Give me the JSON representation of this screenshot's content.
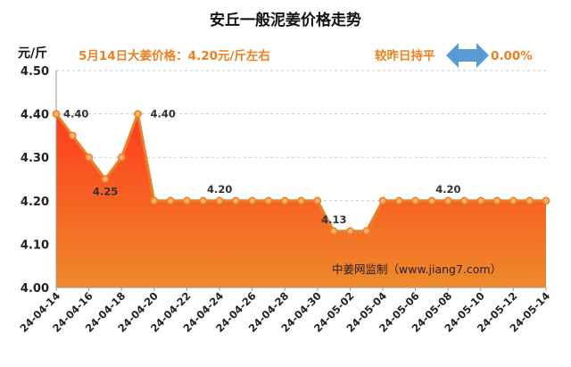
{
  "chart_data": {
    "type": "area",
    "title": "安丘一般泥姜价格走势",
    "ylabel": "元/斤",
    "ylim": [
      4.0,
      4.5
    ],
    "yticks": [
      "4.00",
      "4.10",
      "4.20",
      "4.30",
      "4.40",
      "4.50"
    ],
    "yticks_values": [
      4.0,
      4.1,
      4.2,
      4.3,
      4.4,
      4.5
    ],
    "x_tick_labels": [
      "24-04-14",
      "24-04-16",
      "24-04-18",
      "24-04-20",
      "24-04-22",
      "24-04-24",
      "24-04-26",
      "24-04-28",
      "24-04-30",
      "24-05-02",
      "24-05-04",
      "24-05-06",
      "24-05-08",
      "24-05-10",
      "24-05-12",
      "24-05-14"
    ],
    "values": [
      4.4,
      4.35,
      4.3,
      4.25,
      4.3,
      4.4,
      4.2,
      4.2,
      4.2,
      4.2,
      4.2,
      4.2,
      4.2,
      4.2,
      4.2,
      4.2,
      4.2,
      4.13,
      4.13,
      4.13,
      4.2,
      4.2,
      4.2,
      4.2,
      4.2,
      4.2,
      4.2,
      4.2,
      4.2,
      4.2,
      4.2
    ],
    "point_labels": [
      {
        "index": 0,
        "text": "4.40"
      },
      {
        "index": 3,
        "text": "4.25"
      },
      {
        "index": 5,
        "text": "4.40"
      },
      {
        "index": 10,
        "text": "4.20"
      },
      {
        "index": 17,
        "text": "4.13"
      },
      {
        "index": 24,
        "text": "4.20"
      }
    ],
    "grid": "horizontal dashed",
    "colors": {
      "line": "#e8812a",
      "fill_top": "#ff3b1e",
      "fill_bottom": "#ee8a2a",
      "point_fill": "#f6b26b"
    }
  },
  "annotations": {
    "price_note": "5月14日大姜价格：4.20元/斤左右",
    "compare_text": "较昨日持平",
    "change_pct": "0.00%",
    "arrow_icon": "double-arrow-icon",
    "arrow_color": "#5b9bd5",
    "watermark": "中姜网监制（www.jiang7.com）"
  }
}
